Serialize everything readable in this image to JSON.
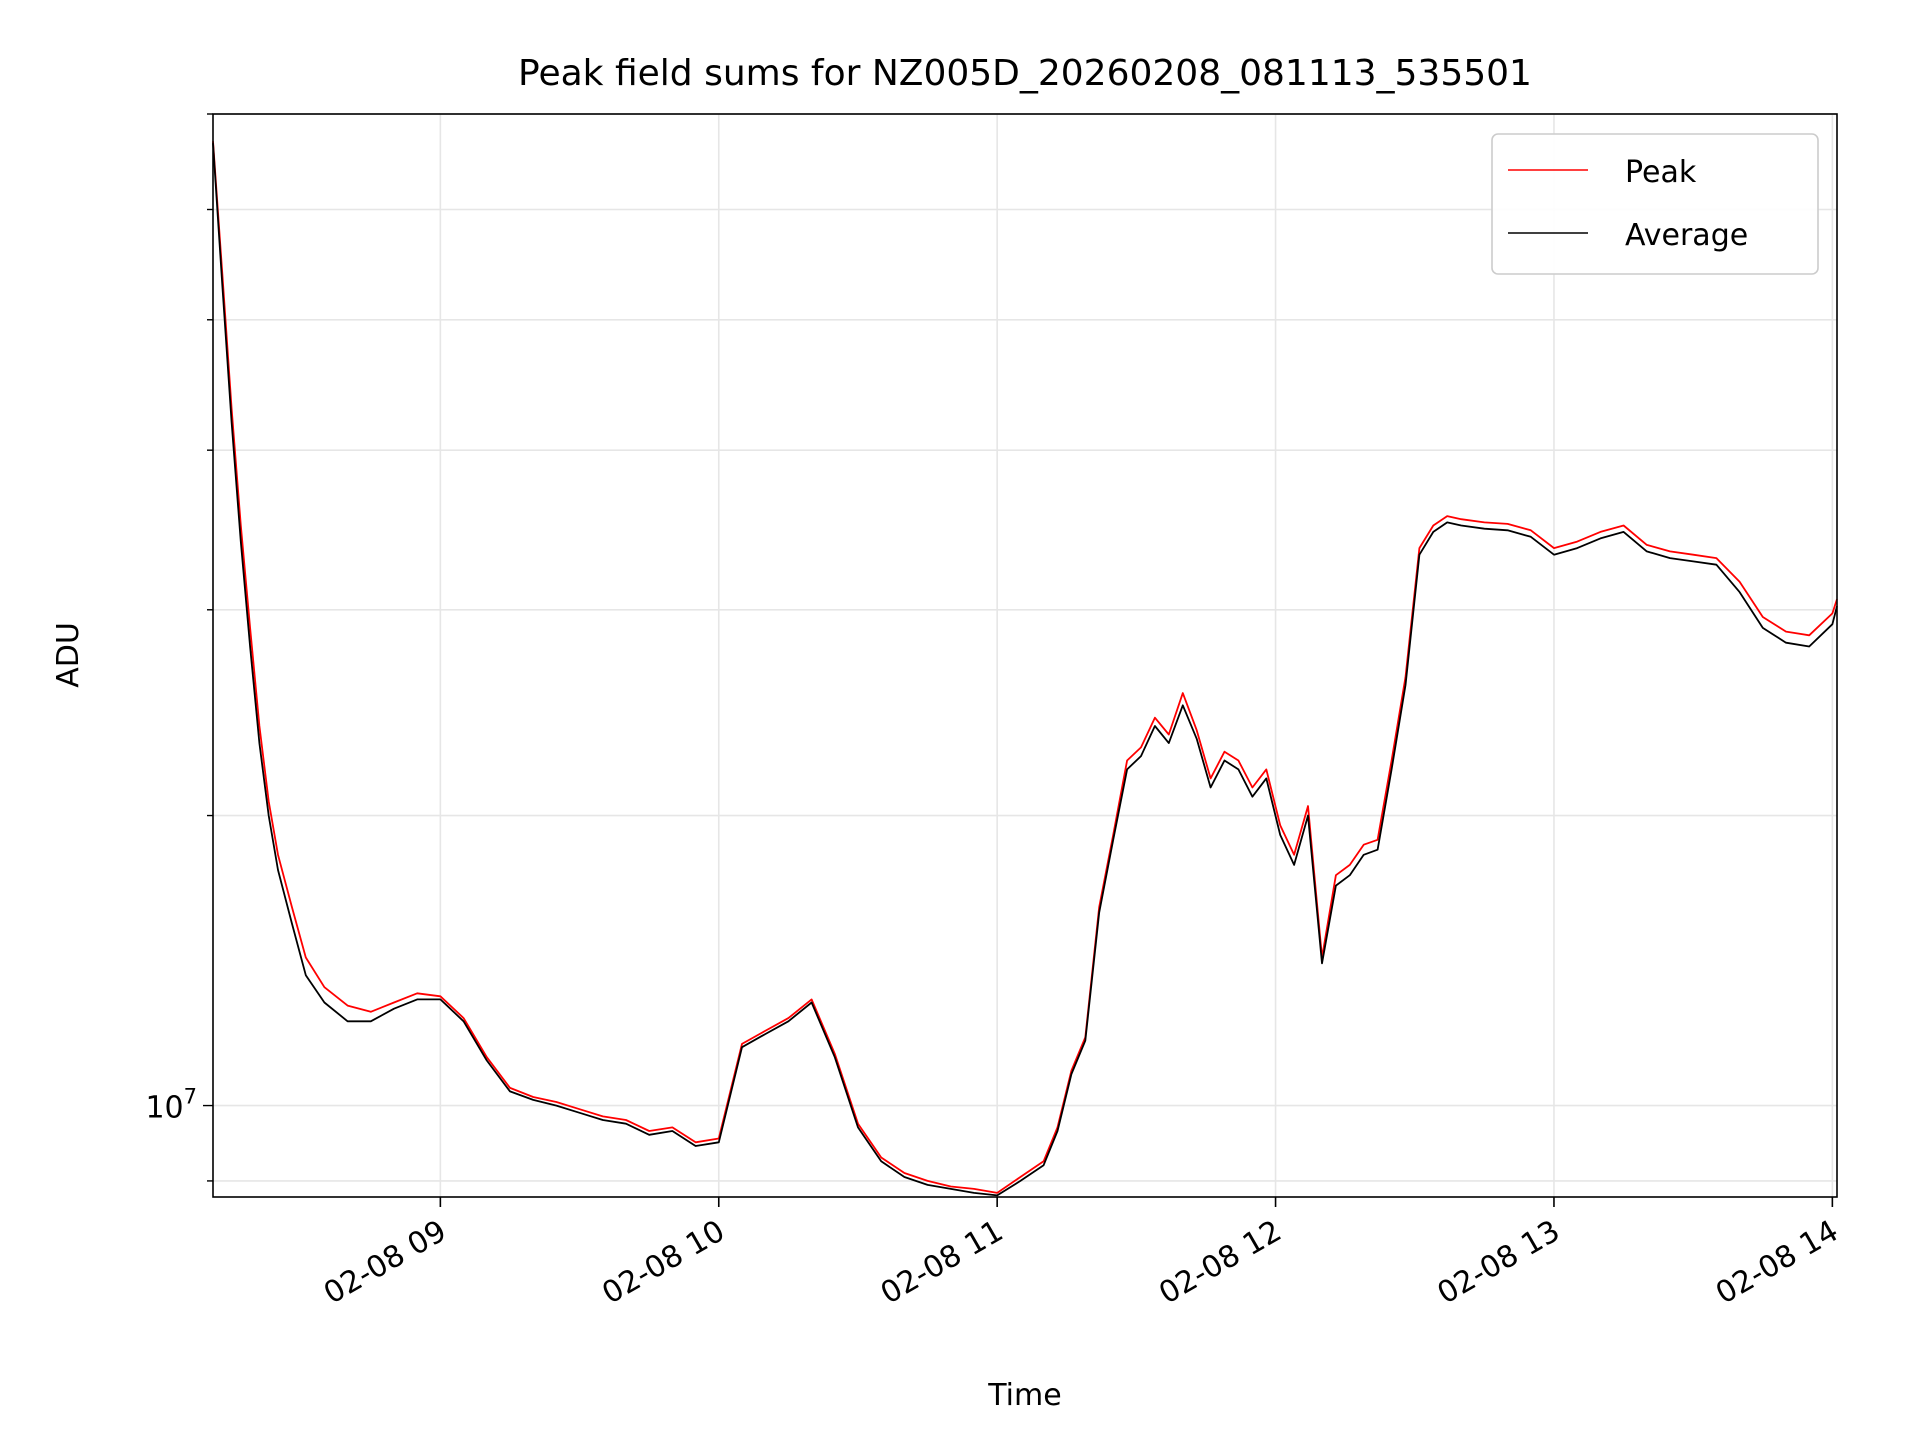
{
  "chart_data": {
    "type": "line",
    "title": "Peak field sums for NZ005D_20260208_081113_535501",
    "xlabel": "Time",
    "ylabel": "ADU",
    "x_type": "time",
    "x_range": [
      "2026-02-08 08:11",
      "2026-02-08 14:01"
    ],
    "xticks": [
      "2026-02-08 09:00",
      "2026-02-08 10:00",
      "2026-02-08 11:00",
      "2026-02-08 12:00",
      "2026-02-08 13:00",
      "2026-02-08 14:00"
    ],
    "xticklabels": [
      "02-08 09",
      "02-08 10",
      "02-08 11",
      "02-08 12",
      "02-08 13",
      "02-08 14"
    ],
    "y_scale": "log",
    "ylim": [
      8800000,
      40000000
    ],
    "y_major_tick_label": {
      "base": "10",
      "exp": "7"
    },
    "grid": true,
    "legend": {
      "position": "top-right",
      "entries": [
        "Peak",
        "Average"
      ]
    },
    "series": [
      {
        "name": "Peak",
        "color": "#ff0000",
        "x": [
          "08:11",
          "08:13",
          "08:15",
          "08:17",
          "08:19",
          "08:21",
          "08:23",
          "08:25",
          "08:28",
          "08:31",
          "08:35",
          "08:40",
          "08:45",
          "08:50",
          "08:55",
          "09:00",
          "09:05",
          "09:10",
          "09:15",
          "09:20",
          "09:25",
          "09:30",
          "09:35",
          "09:40",
          "09:45",
          "09:50",
          "09:55",
          "10:00",
          "10:05",
          "10:10",
          "10:15",
          "10:20",
          "10:25",
          "10:30",
          "10:35",
          "10:40",
          "10:45",
          "10:50",
          "10:55",
          "11:00",
          "11:05",
          "11:10",
          "11:13",
          "11:16",
          "11:19",
          "11:22",
          "11:25",
          "11:28",
          "11:31",
          "11:34",
          "11:37",
          "11:40",
          "11:43",
          "11:46",
          "11:49",
          "11:52",
          "11:55",
          "11:58",
          "12:01",
          "12:04",
          "12:07",
          "12:10",
          "12:13",
          "12:16",
          "12:19",
          "12:22",
          "12:25",
          "12:28",
          "12:31",
          "12:34",
          "12:37",
          "12:40",
          "12:45",
          "12:50",
          "12:55",
          "13:00",
          "13:05",
          "13:10",
          "13:15",
          "13:20",
          "13:25",
          "13:30",
          "13:35",
          "13:40",
          "13:45",
          "13:50",
          "13:55",
          "14:00",
          "14:01"
        ],
        "y": [
          38500000,
          32000000,
          26500000,
          22500000,
          19500000,
          17000000,
          15300000,
          14200000,
          13200000,
          12300000,
          11800000,
          11500000,
          11400000,
          11550000,
          11700000,
          11650000,
          11300000,
          10700000,
          10250000,
          10120000,
          10050000,
          9950000,
          9850000,
          9800000,
          9650000,
          9700000,
          9500000,
          9550000,
          10900000,
          11100000,
          11300000,
          11600000,
          10750000,
          9750000,
          9300000,
          9100000,
          9000000,
          8930000,
          8900000,
          8850000,
          9050000,
          9250000,
          9700000,
          10500000,
          11000000,
          13200000,
          14600000,
          16200000,
          16500000,
          17200000,
          16800000,
          17800000,
          16900000,
          15800000,
          16400000,
          16200000,
          15600000,
          16000000,
          14800000,
          14200000,
          15200000,
          12300000,
          13800000,
          14000000,
          14400000,
          14500000,
          16200000,
          18200000,
          21800000,
          22500000,
          22800000,
          22700000,
          22600000,
          22550000,
          22350000,
          21800000,
          22000000,
          22300000,
          22500000,
          21900000,
          21700000,
          21600000,
          21500000,
          20800000,
          19800000,
          19400000,
          19300000,
          19900000,
          20300000
        ]
      },
      {
        "name": "Average",
        "color": "#000000",
        "x": [
          "08:11",
          "08:13",
          "08:15",
          "08:17",
          "08:19",
          "08:21",
          "08:23",
          "08:25",
          "08:28",
          "08:31",
          "08:35",
          "08:40",
          "08:45",
          "08:50",
          "08:55",
          "09:00",
          "09:05",
          "09:10",
          "09:15",
          "09:20",
          "09:25",
          "09:30",
          "09:35",
          "09:40",
          "09:45",
          "09:50",
          "09:55",
          "10:00",
          "10:05",
          "10:10",
          "10:15",
          "10:20",
          "10:25",
          "10:30",
          "10:35",
          "10:40",
          "10:45",
          "10:50",
          "10:55",
          "11:00",
          "11:05",
          "11:10",
          "11:13",
          "11:16",
          "11:19",
          "11:22",
          "11:25",
          "11:28",
          "11:31",
          "11:34",
          "11:37",
          "11:40",
          "11:43",
          "11:46",
          "11:49",
          "11:52",
          "11:55",
          "11:58",
          "12:01",
          "12:04",
          "12:07",
          "12:10",
          "12:13",
          "12:16",
          "12:19",
          "12:22",
          "12:25",
          "12:28",
          "12:31",
          "12:34",
          "12:37",
          "12:40",
          "12:45",
          "12:50",
          "12:55",
          "13:00",
          "13:05",
          "13:10",
          "13:15",
          "13:20",
          "13:25",
          "13:30",
          "13:35",
          "13:40",
          "13:45",
          "13:50",
          "13:55",
          "14:00",
          "14:01"
        ],
        "y": [
          38400000,
          31500000,
          26000000,
          22000000,
          19000000,
          16600000,
          15000000,
          13900000,
          12900000,
          12000000,
          11550000,
          11250000,
          11250000,
          11450000,
          11600000,
          11600000,
          11250000,
          10650000,
          10200000,
          10080000,
          10000000,
          9900000,
          9800000,
          9750000,
          9600000,
          9650000,
          9450000,
          9500000,
          10850000,
          11050000,
          11250000,
          11550000,
          10700000,
          9700000,
          9250000,
          9050000,
          8950000,
          8900000,
          8850000,
          8820000,
          9000000,
          9200000,
          9650000,
          10450000,
          10950000,
          13100000,
          14500000,
          16000000,
          16300000,
          17000000,
          16600000,
          17500000,
          16700000,
          15600000,
          16200000,
          16000000,
          15400000,
          15800000,
          14600000,
          14000000,
          15000000,
          12200000,
          13600000,
          13800000,
          14200000,
          14300000,
          16000000,
          18000000,
          21600000,
          22300000,
          22600000,
          22500000,
          22400000,
          22350000,
          22150000,
          21600000,
          21800000,
          22100000,
          22300000,
          21700000,
          21500000,
          21400000,
          21300000,
          20500000,
          19500000,
          19100000,
          19000000,
          19600000,
          20100000
        ]
      }
    ]
  }
}
